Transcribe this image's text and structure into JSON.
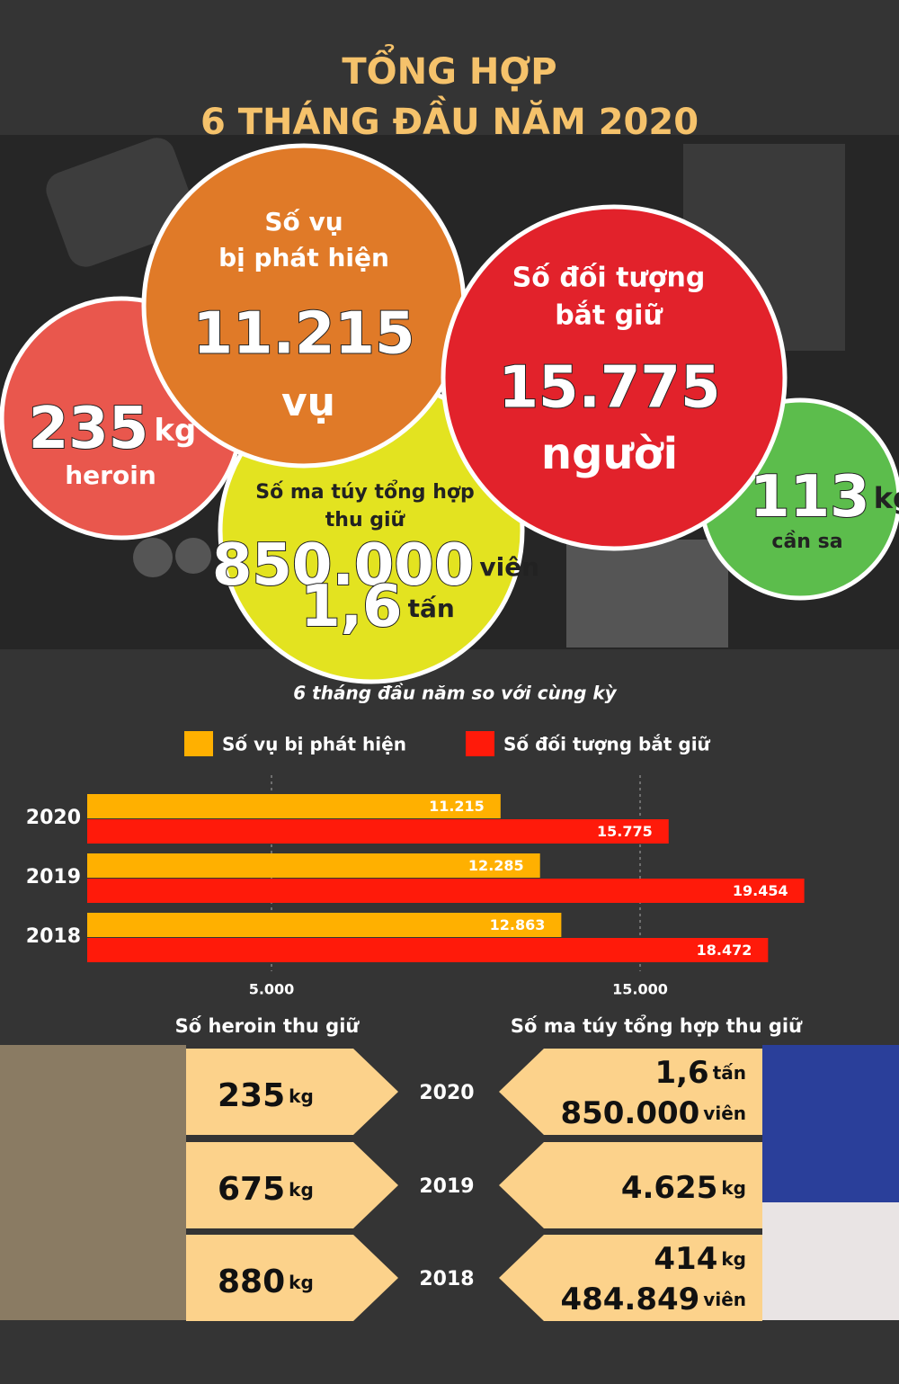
{
  "header": {
    "title_line1": "TỔNG HỢP",
    "title_line2": "6 THÁNG ĐẦU NĂM 2020"
  },
  "circles": {
    "heroin": {
      "amount": "235",
      "unit": "kg",
      "label": "heroin"
    },
    "cases": {
      "label_line1": "Số vụ",
      "label_line2": "bị phát hiện",
      "amount": "11.215",
      "unit": "vụ"
    },
    "synthetic": {
      "label_line1": "Số ma túy tổng hợp",
      "label_line2": "thu giữ",
      "amount1": "850.000",
      "unit1": "viên",
      "amount2": "1,6",
      "unit2": "tấn"
    },
    "arrested": {
      "label_line1": "Số đối tượng",
      "label_line2": "bắt giữ",
      "amount": "15.775",
      "unit": "người"
    },
    "cannabis": {
      "amount": "113",
      "unit": "kg",
      "label": "cần sa"
    }
  },
  "chart_data": {
    "type": "hbar",
    "title": "6 tháng đầu năm so với cùng kỳ",
    "categories": [
      "2020",
      "2019",
      "2018"
    ],
    "series": [
      {
        "name": "Số vụ bị phát hiện",
        "color": "#ffb000",
        "values": [
          11215,
          12285,
          12863
        ],
        "value_labels": [
          "11.215",
          "12.285",
          "12.863"
        ]
      },
      {
        "name": "Số đối tượng bắt giữ",
        "color": "#ff1a0a",
        "values": [
          15775,
          19454,
          18472
        ],
        "value_labels": [
          "15.775",
          "19.454",
          "18.472"
        ]
      }
    ],
    "xlim": [
      0,
      20000
    ],
    "xticks": [
      {
        "value": 5000,
        "label": "5.000"
      },
      {
        "value": 15000,
        "label": "15.000"
      }
    ],
    "grid": true
  },
  "comparison": {
    "heroin_title": "Số heroin thu giữ",
    "synthetic_title": "Số ma túy tổng hợp thu giữ",
    "rows": [
      {
        "year": "2020",
        "heroin": {
          "amount": "235",
          "unit": "kg"
        },
        "synthetic": [
          {
            "amount": "1,6",
            "unit": "tấn"
          },
          {
            "amount": "850.000",
            "unit": "viên"
          }
        ]
      },
      {
        "year": "2019",
        "heroin": {
          "amount": "675",
          "unit": "kg"
        },
        "synthetic": [
          {
            "amount": "4.625",
            "unit": "kg"
          }
        ]
      },
      {
        "year": "2018",
        "heroin": {
          "amount": "880",
          "unit": "kg"
        },
        "synthetic": [
          {
            "amount": "414",
            "unit": "kg"
          },
          {
            "amount": "484.849",
            "unit": "viên"
          }
        ]
      }
    ]
  }
}
